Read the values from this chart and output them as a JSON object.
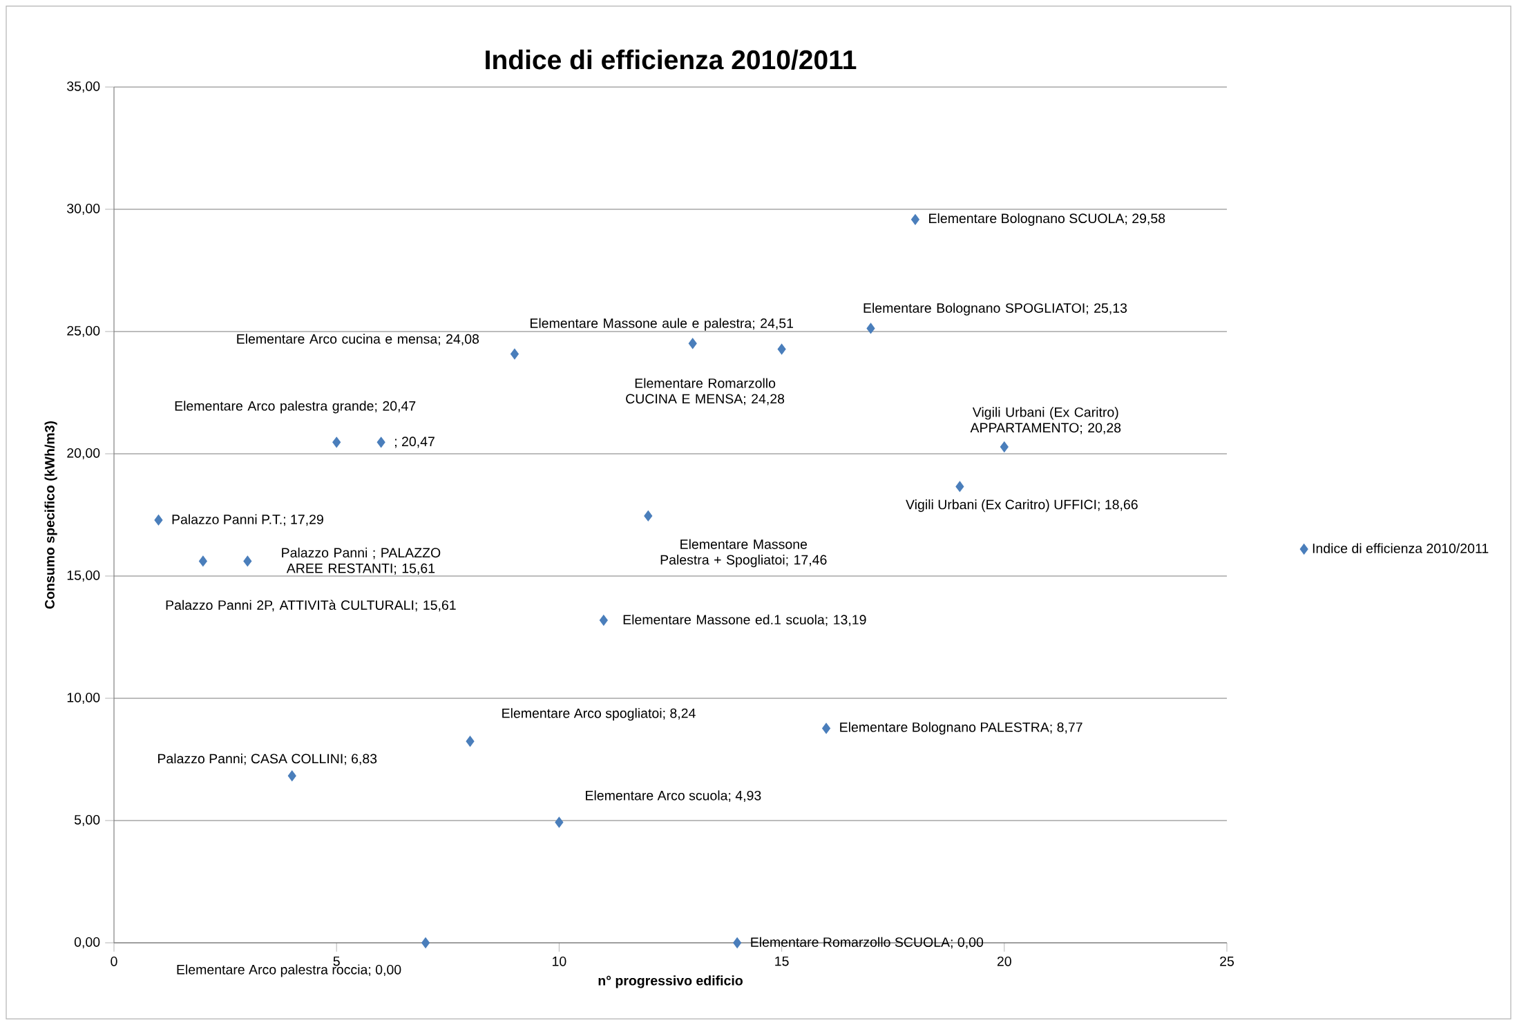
{
  "chart_data": {
    "type": "scatter",
    "title": "Indice di efficienza 2010/2011",
    "xlabel": "n° progressivo edificio",
    "ylabel": "Consumo specifico (kWh/m3)",
    "x": [
      1,
      2,
      3,
      4,
      5,
      6,
      7,
      8,
      9,
      10,
      11,
      12,
      13,
      14,
      15,
      16,
      17,
      18,
      19,
      20
    ],
    "series": [
      {
        "name": "Indice di efficienza 2010/2011",
        "color": "#4a7ebb",
        "values": [
          17.29,
          15.61,
          15.61,
          6.83,
          20.47,
          20.47,
          0.0,
          8.24,
          24.08,
          4.93,
          13.19,
          17.46,
          24.51,
          0.0,
          24.28,
          8.77,
          25.13,
          29.58,
          18.66,
          20.28
        ]
      }
    ],
    "xlim": [
      0,
      25
    ],
    "ylim": [
      0,
      35
    ],
    "xticks": [
      0,
      5,
      10,
      15,
      20,
      25
    ],
    "yticks": [
      {
        "value": 0,
        "label": "0,00"
      },
      {
        "value": 5,
        "label": "5,00"
      },
      {
        "value": 10,
        "label": "10,00"
      },
      {
        "value": 15,
        "label": "15,00"
      },
      {
        "value": 20,
        "label": "20,00"
      },
      {
        "value": 25,
        "label": "25,00"
      },
      {
        "value": 30,
        "label": "30,00"
      },
      {
        "value": 35,
        "label": "35,00"
      }
    ],
    "grid": "y",
    "legend": "right",
    "marker": "diamond",
    "annotations": [
      {
        "text": "Palazzo Panni P.T.; 17,29",
        "x": 1,
        "y": 17.29
      },
      {
        "text": "Palazzo Panni 2P, ATTIVITà CULTURALI; 15,61",
        "x": 2,
        "y": 15.61
      },
      {
        "text": "Palazzo Panni ; PALAZZO AREE RESTANTI; 15,61",
        "x": 3,
        "y": 15.61
      },
      {
        "text": "Palazzo Panni; CASA COLLINI; 6,83",
        "x": 4,
        "y": 6.83
      },
      {
        "text": "Elementare Arco palestra grande; 20,47",
        "x": 5,
        "y": 20.47
      },
      {
        "text": "; 20,47",
        "x": 6,
        "y": 20.47
      },
      {
        "text": "Elementare Arco palestra roccia; 0,00",
        "x": 7,
        "y": 0.0
      },
      {
        "text": "Elementare Arco spogliatoi; 8,24",
        "x": 8,
        "y": 8.24
      },
      {
        "text": "Elementare Arco cucina e mensa; 24,08",
        "x": 9,
        "y": 24.08
      },
      {
        "text": "Elementare Arco scuola; 4,93",
        "x": 10,
        "y": 4.93
      },
      {
        "text": "Elementare Massone ed.1 scuola; 13,19",
        "x": 11,
        "y": 13.19
      },
      {
        "text": "Elementare Massone Palestra + Spogliatoi; 17,46",
        "x": 12,
        "y": 17.46
      },
      {
        "text": "Elementare Massone aule e palestra; 24,51",
        "x": 13,
        "y": 24.51
      },
      {
        "text": "Elementare Romarzollo SCUOLA; 0,00",
        "x": 14,
        "y": 0.0
      },
      {
        "text": "Elementare Romarzollo CUCINA E MENSA; 24,28",
        "x": 15,
        "y": 24.28
      },
      {
        "text": "Elementare Bolognano PALESTRA; 8,77",
        "x": 16,
        "y": 8.77
      },
      {
        "text": "Elementare Bolognano SPOGLIATOI; 25,13",
        "x": 17,
        "y": 25.13
      },
      {
        "text": "Elementare Bolognano SCUOLA; 29,58",
        "x": 18,
        "y": 29.58
      },
      {
        "text": "Vigili Urbani (Ex Caritro) UFFICI; 18,66",
        "x": 19,
        "y": 18.66
      },
      {
        "text": "Vigili Urbani (Ex Caritro) APPARTAMENTO; 20,28",
        "x": 20,
        "y": 20.28
      }
    ]
  }
}
